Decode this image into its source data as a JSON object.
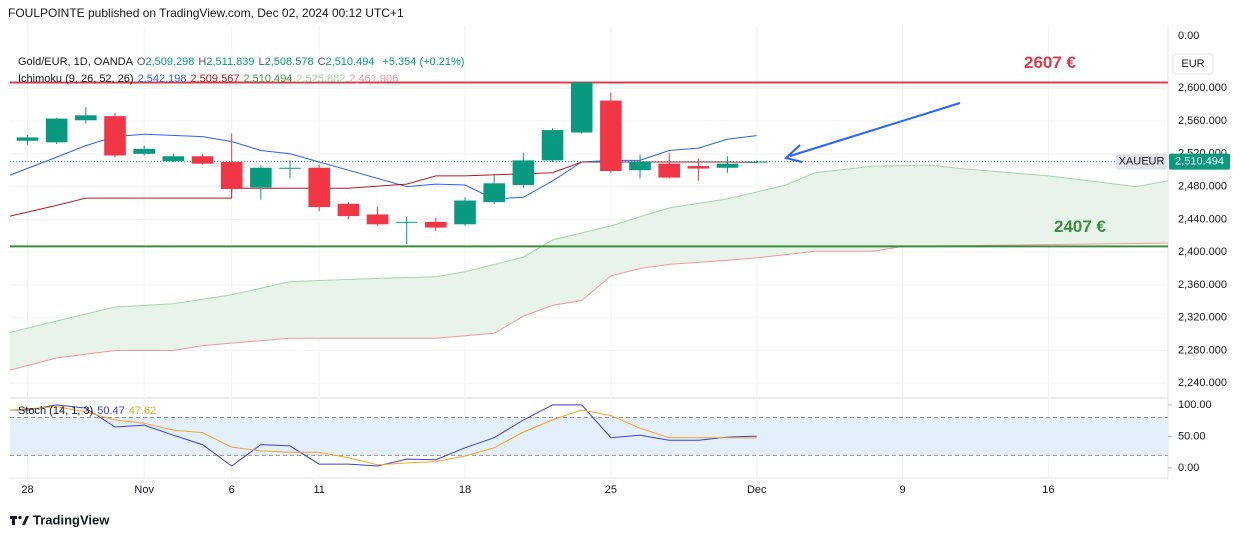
{
  "header": {
    "publisher": "FOULPOINTE published on TradingView.com, Dec 02, 2024 00:12 UTC+1",
    "brand": "TradingView"
  },
  "chart_data": [
    {
      "type": "candlestick",
      "symbol": "Gold/EUR, 1D, OANDA",
      "ohlc_legend": [
        {
          "key": "O",
          "value": "2,509.298"
        },
        {
          "key": "H",
          "value": "2,511.839"
        },
        {
          "key": "L",
          "value": "2,508.578"
        },
        {
          "key": "C",
          "value": "2,510.494"
        }
      ],
      "change": "+5.354 (+0.21%)",
      "up_color": "#089981",
      "down_color": "#f23645",
      "x": [
        0,
        1,
        2,
        3,
        4,
        5,
        6,
        7,
        8,
        9,
        10,
        11,
        12,
        13,
        14,
        15,
        16,
        17,
        18,
        19,
        20,
        21,
        22,
        23,
        24,
        25
      ],
      "open": [
        2536,
        2534,
        2561,
        2566,
        2520,
        2511,
        2517,
        2510,
        2479,
        2502,
        2503,
        2459,
        2446,
        2437,
        2437,
        2434,
        2461,
        2482,
        2512,
        2546,
        2585,
        2500,
        2508,
        2505,
        2503,
        2509.298
      ],
      "high": [
        2543,
        2564,
        2577,
        2570,
        2530,
        2520,
        2519,
        2545,
        2506,
        2512,
        2507,
        2461,
        2455,
        2443,
        2442,
        2467,
        2494,
        2521,
        2551,
        2608,
        2595,
        2519,
        2521,
        2514,
        2517,
        2511.839
      ],
      "low": [
        2531,
        2532,
        2557,
        2516,
        2518,
        2510,
        2507,
        2476,
        2464,
        2490,
        2450,
        2440,
        2432,
        2410,
        2426,
        2432,
        2459,
        2478,
        2510,
        2545,
        2497,
        2490,
        2490,
        2487,
        2497,
        2508.578
      ],
      "close": [
        2540,
        2563,
        2567,
        2518,
        2526,
        2517,
        2508,
        2477,
        2503,
        2503,
        2455,
        2444,
        2434,
        2437,
        2430,
        2463,
        2484,
        2512,
        2549,
        2607,
        2499,
        2510,
        2491,
        2502,
        2508,
        2510.494
      ],
      "indicator": {
        "name": "Ichimoku (9, 26, 52, 26)",
        "values": [
          {
            "label": "2,542.198",
            "color": "#2962ff"
          },
          {
            "label": "2,509.567",
            "color": "#b71c1c"
          },
          {
            "label": "2,510.494",
            "color": "#43a047"
          },
          {
            "label": "2,525.882",
            "color": "#a5d6a7"
          },
          {
            "label": "2,461.906",
            "color": "#ef9a9a"
          }
        ]
      },
      "series": [
        {
          "color": "#2962ff",
          "x": [
            -0.6,
            1,
            2,
            3,
            4,
            6,
            7,
            8,
            9,
            10,
            11,
            12,
            13,
            14,
            15,
            16,
            17,
            18,
            19,
            20,
            21,
            22,
            23,
            24,
            25
          ],
          "values": [
            2494,
            2516,
            2530,
            2541,
            2544,
            2541,
            2535,
            2524,
            2520,
            2510,
            2500,
            2490,
            2480,
            2483,
            2482,
            2465,
            2467,
            2487,
            2510,
            2512,
            2512,
            2524,
            2527,
            2538,
            2542.198
          ]
        },
        {
          "color": "#b71c1c",
          "x": [
            -0.6,
            1,
            2,
            7,
            7,
            11,
            13,
            14,
            15,
            18,
            19,
            24,
            25
          ],
          "values": [
            2444,
            2457,
            2466,
            2466,
            2478,
            2478,
            2483,
            2493,
            2493,
            2497,
            2510,
            2510,
            2509.567
          ]
        }
      ],
      "cloud": {
        "fill": "#e8f4e9",
        "upper": {
          "color": "#a5d6a7",
          "x": [
            -0.6,
            1,
            3,
            5,
            7,
            9,
            12,
            14,
            15,
            17,
            18,
            20,
            22,
            24,
            26,
            27,
            29,
            31,
            32,
            35,
            38,
            39.1
          ],
          "values": [
            2302,
            2316,
            2333,
            2337,
            2348,
            2364,
            2368,
            2370,
            2376,
            2394,
            2415,
            2432,
            2454,
            2465,
            2482,
            2497,
            2505,
            2506,
            2502,
            2493,
            2480,
            2487
          ]
        },
        "lower": {
          "color": "#ef9a9a",
          "x": [
            -0.6,
            1,
            3,
            5,
            6,
            9,
            14,
            16,
            17,
            18,
            19,
            20,
            21,
            22,
            24,
            25,
            27,
            29,
            30,
            39.1
          ],
          "values": [
            2256,
            2271,
            2280,
            2280,
            2286,
            2295,
            2295,
            2301,
            2322,
            2335,
            2341,
            2371,
            2380,
            2385,
            2390,
            2393,
            2401,
            2401,
            2407,
            2411
          ]
        }
      },
      "hlines": [
        {
          "value": 2607,
          "color": "#e03c4c",
          "label": "2607 €"
        },
        {
          "value": 2407,
          "color": "#3a8f3e",
          "label": "2407 €"
        }
      ],
      "last_price": {
        "value": 2510.494,
        "symbol": "XAUEUR",
        "label": "2,510.494",
        "color": "#089981"
      },
      "currency": "EUR",
      "corner_label": "0.00",
      "grid": true,
      "xlim": [
        -0.6,
        39.1
      ],
      "xticks": [
        {
          "value": 0,
          "label": "28"
        },
        {
          "value": 4,
          "label": "Nov"
        },
        {
          "value": 7,
          "label": "6"
        },
        {
          "value": 10,
          "label": "11"
        },
        {
          "value": 15,
          "label": "18"
        },
        {
          "value": 20,
          "label": "25"
        },
        {
          "value": 25,
          "label": "Dec"
        },
        {
          "value": 30,
          "label": "9"
        },
        {
          "value": 35,
          "label": "16"
        }
      ],
      "ylim": [
        2222,
        2676
      ],
      "yticks": [
        {
          "value": 2240,
          "label": "2,240.000"
        },
        {
          "value": 2280,
          "label": "2,280.000"
        },
        {
          "value": 2320,
          "label": "2,320.000"
        },
        {
          "value": 2360,
          "label": "2,360.000"
        },
        {
          "value": 2400,
          "label": "2,400.000"
        },
        {
          "value": 2440,
          "label": "2,440.000"
        },
        {
          "value": 2480,
          "label": "2,480.000"
        },
        {
          "value": 2520,
          "label": "2,520.000"
        },
        {
          "value": 2560,
          "label": "2,560.000"
        },
        {
          "value": 2600,
          "label": "2,600.000"
        }
      ]
    },
    {
      "type": "line",
      "title": "Stoch (14, 1, 3)",
      "series": [
        {
          "color": "#3f3fd8",
          "value_label": "50.47",
          "x": [
            -0.6,
            0,
            1,
            2,
            3,
            4,
            5,
            6,
            7,
            8,
            9,
            10,
            11,
            12,
            13,
            14,
            15,
            16,
            17,
            18,
            19,
            20,
            21,
            22,
            23,
            24,
            25
          ],
          "values": [
            92,
            92,
            100,
            95,
            65,
            68,
            52,
            37,
            3,
            37,
            35,
            6,
            6,
            3,
            14,
            13,
            32,
            48,
            76,
            100,
            100,
            48,
            52,
            44,
            44,
            49,
            50.47
          ]
        },
        {
          "color": "#f5a623",
          "value_label": "47.62",
          "x": [
            -0.6,
            0,
            1,
            2,
            3,
            4,
            5,
            6,
            7,
            8,
            9,
            10,
            11,
            12,
            13,
            14,
            15,
            16,
            17,
            18,
            19,
            20,
            21,
            22,
            23,
            24,
            25
          ],
          "values": [
            92,
            94,
            97,
            89,
            76,
            71,
            60,
            56,
            33,
            27,
            25,
            25,
            16,
            5,
            8,
            10,
            19,
            32,
            57,
            76,
            92,
            83,
            63,
            48,
            48,
            48,
            47.62
          ]
        }
      ],
      "bands": [
        20,
        80
      ],
      "band_fill": "#e3f0fb",
      "ylim": [
        -16,
        111
      ],
      "yticks": [
        {
          "value": 0,
          "label": "0.00"
        },
        {
          "value": 50,
          "label": "50.00"
        },
        {
          "value": 100,
          "label": "100.00"
        }
      ]
    }
  ]
}
